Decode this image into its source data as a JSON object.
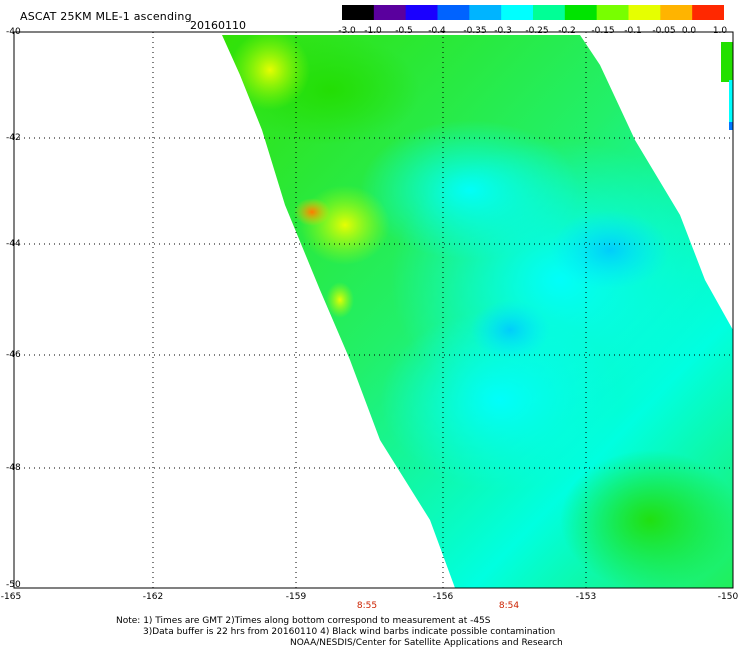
{
  "header": {
    "title": "ASCAT 25KM MLE-1 ascending",
    "date": "20160110"
  },
  "colorbar": {
    "labels": [
      "-3.0",
      "-1.0",
      "-0.5",
      "-0.4",
      "-0.35",
      "-0.3",
      "-0.25",
      "-0.2",
      "-0.15",
      "-0.1",
      "-0.05",
      "0.0",
      "1.0"
    ],
    "colors": [
      "#000000",
      "#5a009e",
      "#1a00ff",
      "#0063ff",
      "#00b4ff",
      "#00ffff",
      "#00ff96",
      "#00e400",
      "#78ff00",
      "#e6ff00",
      "#ffb400",
      "#ff2800"
    ]
  },
  "axes": {
    "lat_labels": [
      "-40",
      "-42",
      "-44",
      "-46",
      "-48",
      "-50"
    ],
    "lon_labels": [
      "-165",
      "-162",
      "-159",
      "-156",
      "-153",
      "-150"
    ],
    "time_labels": [
      "8:55",
      "8:54"
    ]
  },
  "notes": {
    "line1": "Note: 1) Times are GMT 2)Times along bottom correspond to measurement at -45S",
    "line2": "3)Data buffer is 22 hrs from 20160110 4) Black wind barbs indicate possible contamination",
    "line3": "NOAA/NESDIS/Center for Satellite Applications and Research"
  }
}
